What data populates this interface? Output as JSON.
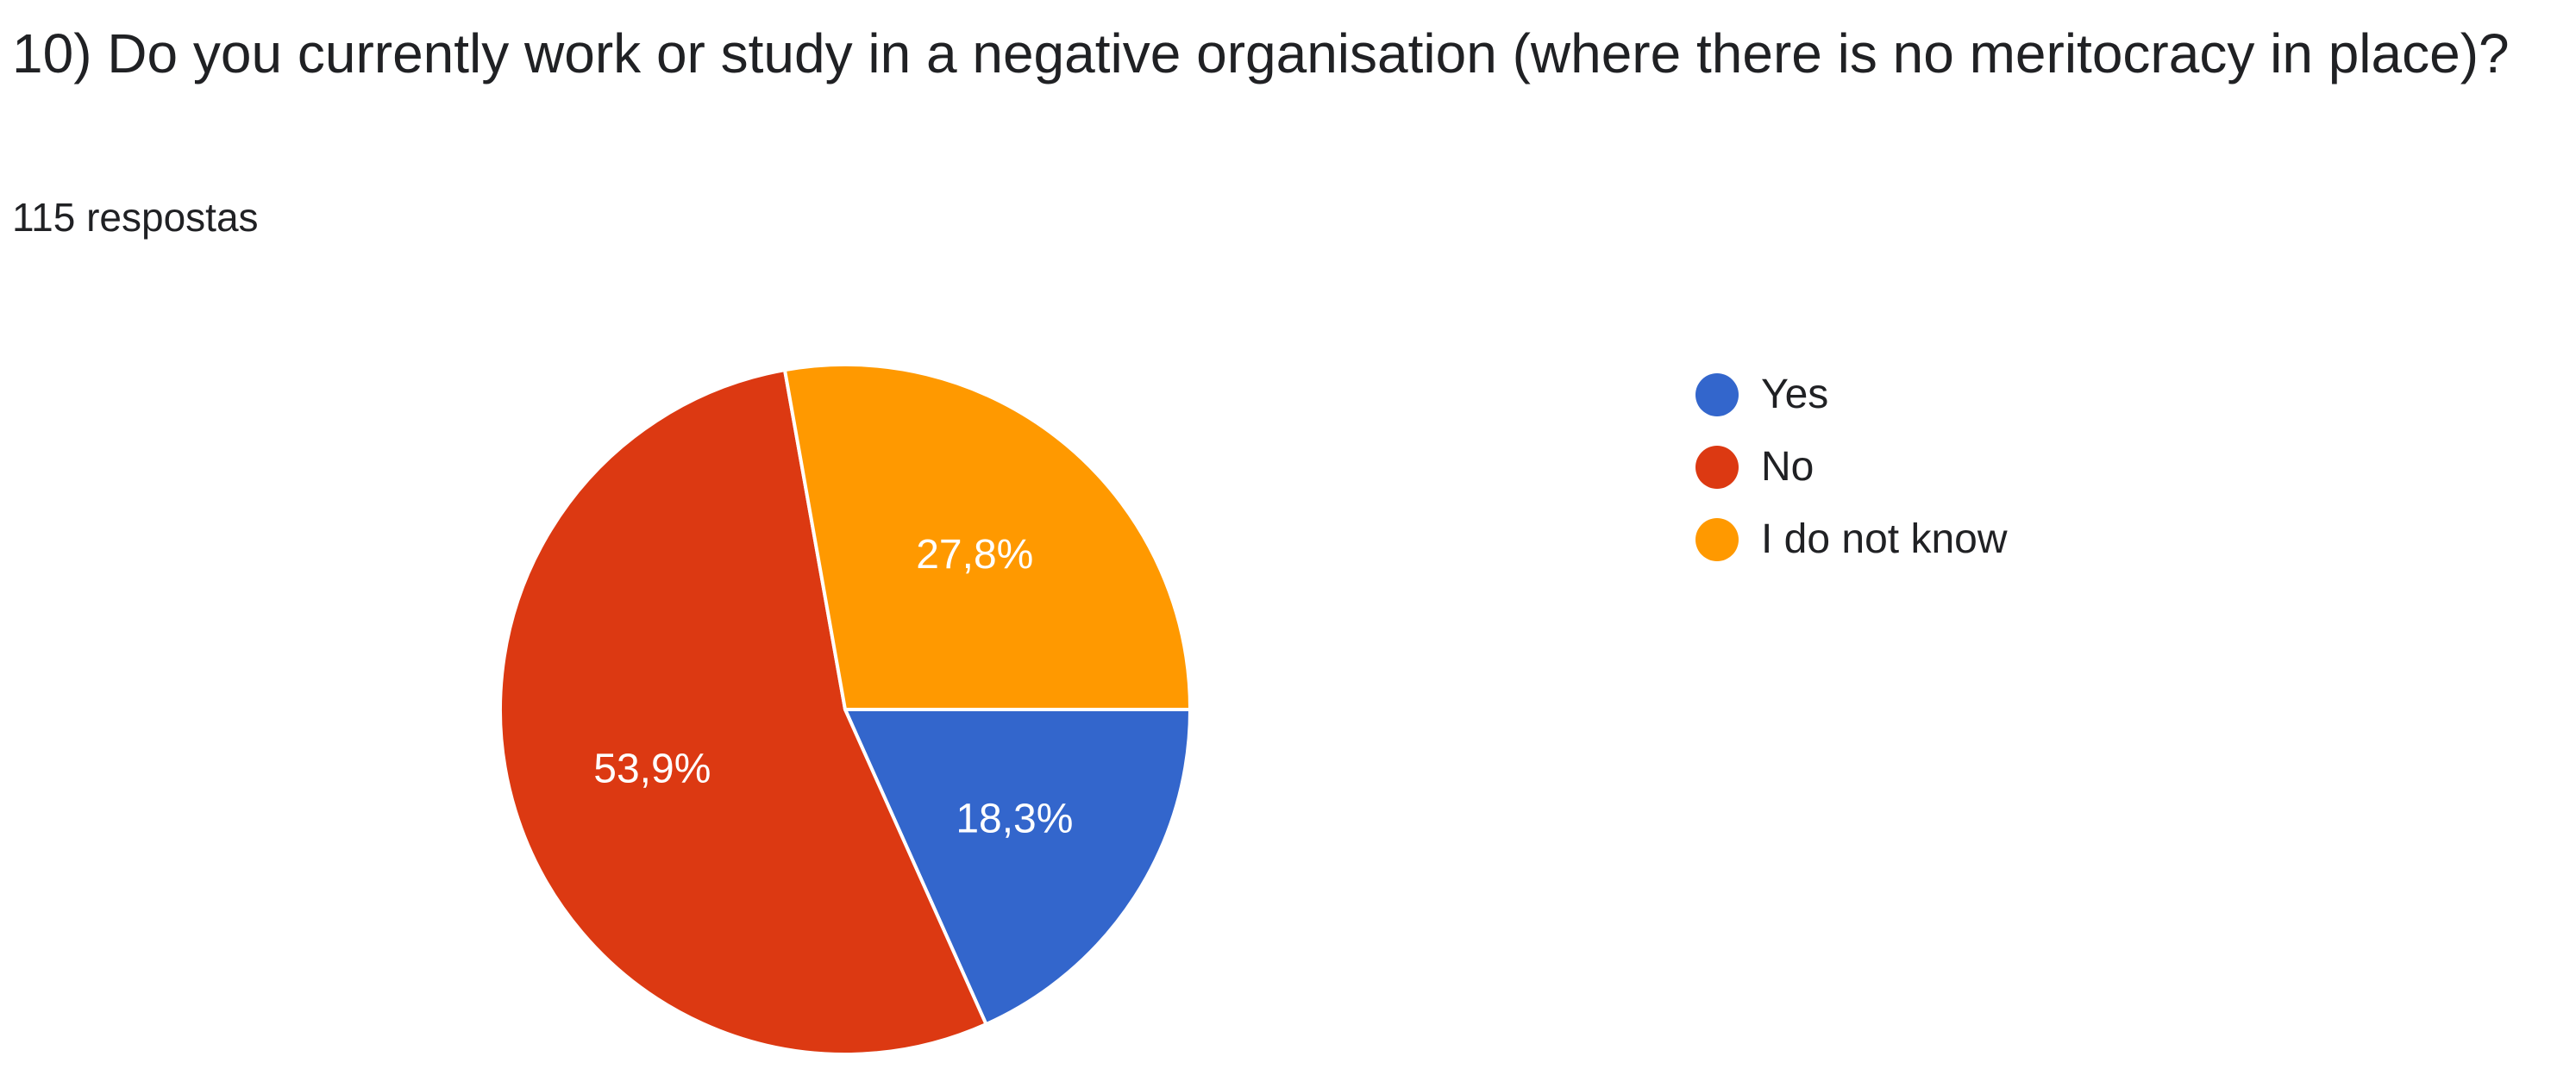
{
  "question": {
    "title": "10) Do you currently work or study in a negative organisation (where there is no meritocracy in place)?",
    "response_count": "115 respostas"
  },
  "chart_data": {
    "type": "pie",
    "title": "10) Do you currently work or study in a negative organisation (where there is no meritocracy in place)?",
    "subtitle": "115 respostas",
    "categories": [
      "Yes",
      "No",
      "I do not know"
    ],
    "values": [
      18.3,
      53.9,
      27.8
    ],
    "value_labels": [
      "18,3%",
      "53,9%",
      "27,8%"
    ],
    "colors": [
      "#3366CC",
      "#DC3912",
      "#FF9900"
    ],
    "start_angle_deg": 90,
    "direction": "clockwise",
    "legend": "right"
  }
}
